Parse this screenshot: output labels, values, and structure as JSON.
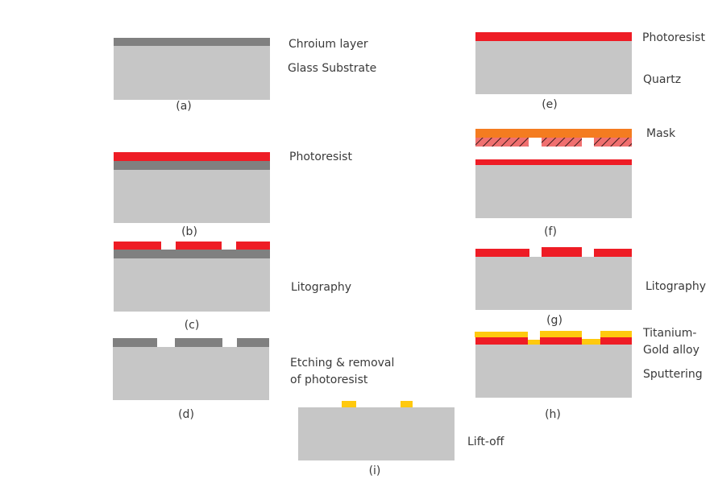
{
  "colors": {
    "substrate": "#c6c6c6",
    "chromium": "#808080",
    "photoresist": "#ee1c25",
    "mask_top": "#f47c20",
    "mask_hatch": "#f07070",
    "gold": "#ffc90e"
  },
  "steps": {
    "a": {
      "caption": "(a)",
      "labels": [
        "Chroium layer",
        "Glass Substrate"
      ]
    },
    "b": {
      "caption": "(b)",
      "labels": [
        "Photoresist"
      ]
    },
    "c": {
      "caption": "(c)",
      "labels": [
        "Litography"
      ]
    },
    "d": {
      "caption": "(d)",
      "labels": [
        "Etching & removal",
        "of photoresist"
      ]
    },
    "e": {
      "caption": "(e)",
      "labels": [
        "Photoresist",
        "Quartz"
      ]
    },
    "f": {
      "caption": "(f)",
      "labels": [
        "Mask"
      ]
    },
    "g": {
      "caption": "(g)",
      "labels": [
        "Litography"
      ]
    },
    "h": {
      "caption": "(h)",
      "labels": [
        "Titanium-",
        "Gold alloy",
        "Sputtering"
      ]
    },
    "i": {
      "caption": "(i)",
      "labels": [
        "Lift-off"
      ]
    }
  }
}
